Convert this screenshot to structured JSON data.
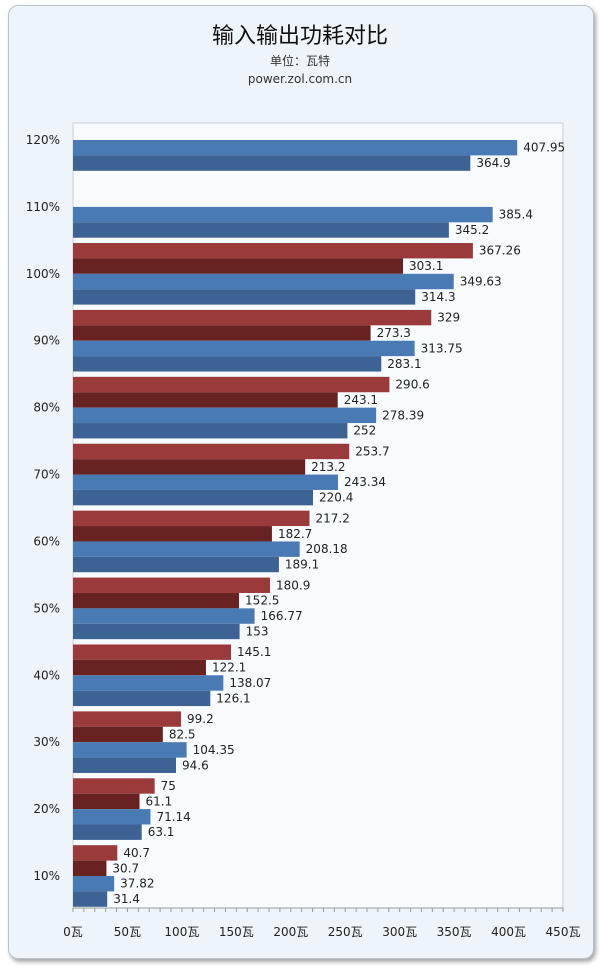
{
  "chart_data": {
    "type": "bar",
    "orientation": "horizontal",
    "title": "输入输出功耗对比",
    "subtitle": "单位：瓦特",
    "source": "power.zol.com.cn",
    "xlabel": "",
    "ylabel": "",
    "xlim": [
      0,
      450
    ],
    "x_ticks": [
      "0瓦",
      "50瓦",
      "100瓦",
      "150瓦",
      "200瓦",
      "250瓦",
      "300瓦",
      "350瓦",
      "400瓦",
      "450瓦"
    ],
    "categories": [
      "120%",
      "110%",
      "100%",
      "90%",
      "80%",
      "70%",
      "60%",
      "50%",
      "40%",
      "30%",
      "20%",
      "10%"
    ],
    "series": [
      {
        "color": "#9a3a3a",
        "values": [
          null,
          null,
          367.26,
          329,
          290.6,
          253.7,
          217.2,
          180.9,
          145.1,
          99.2,
          75,
          40.7
        ]
      },
      {
        "color": "#692222",
        "values": [
          null,
          null,
          303.1,
          273.3,
          243.1,
          213.2,
          182.7,
          152.5,
          122.1,
          82.5,
          61.1,
          30.7
        ]
      },
      {
        "color": "#4a7ab4",
        "values": [
          407.95,
          385.4,
          349.63,
          313.75,
          278.39,
          243.34,
          208.18,
          166.77,
          138.07,
          104.35,
          71.14,
          37.82
        ]
      },
      {
        "color": "#3d6394",
        "values": [
          364.9,
          345.2,
          314.3,
          283.1,
          252,
          220.4,
          189.1,
          153,
          126.1,
          94.6,
          63.1,
          31.4
        ]
      }
    ],
    "grid": false,
    "legend": "none"
  }
}
